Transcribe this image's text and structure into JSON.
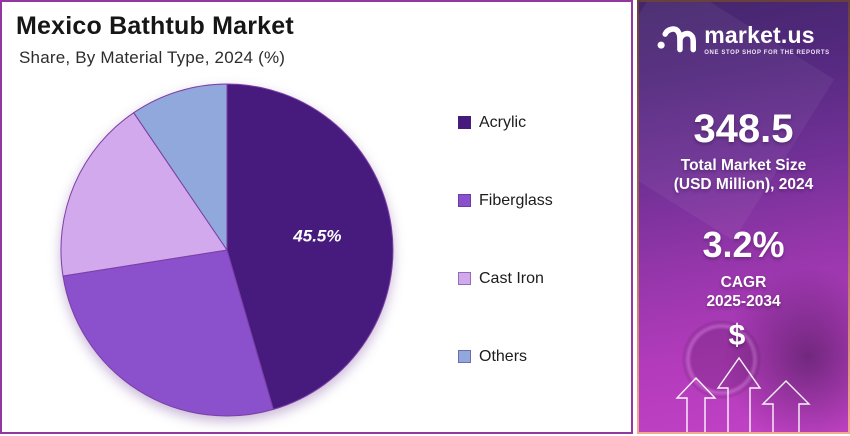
{
  "page": {
    "background": "#ffffff"
  },
  "left_panel": {
    "title": "Mexico Bathtub Market",
    "subtitle": "Share, By Material Type, 2024 (%)",
    "border_color": "#93389f"
  },
  "chart_data": {
    "type": "pie",
    "title": "Mexico Bathtub Market",
    "subtitle": "Share, By Material Type, 2024 (%)",
    "unit": "percent",
    "start_angle_deg": 0,
    "direction": "clockwise",
    "legend_position": "right",
    "slice_stroke_color": "#7b3fa5",
    "slices": [
      {
        "label": "Acrylic",
        "value": 45.5,
        "color": "#471b7e",
        "data_label": "45.5%",
        "show_data_label": true
      },
      {
        "label": "Fiberglass",
        "value": 27.0,
        "color": "#8b50cc",
        "data_label": "",
        "show_data_label": false
      },
      {
        "label": "Cast Iron",
        "value": 18.0,
        "color": "#d2a9ec",
        "data_label": "",
        "show_data_label": false
      },
      {
        "label": "Others",
        "value": 9.5,
        "color": "#90a8dc",
        "data_label": "",
        "show_data_label": false
      }
    ]
  },
  "right_panel": {
    "brand": {
      "name": "market.us",
      "tagline": "ONE STOP SHOP FOR THE REPORTS"
    },
    "market_size": {
      "value": "348.5",
      "label_line1": "Total Market Size",
      "label_line2": "(USD Million), 2024"
    },
    "cagr": {
      "value": "3.2%",
      "label_line1": "CAGR",
      "label_line2": "2025-2034"
    },
    "dollar_symbol": "$",
    "bg_gradient_top": "#44266c",
    "bg_gradient_bottom": "#c242c6",
    "border_gradient_top": "#6a403c",
    "border_gradient_bottom": "#f4a98f"
  }
}
